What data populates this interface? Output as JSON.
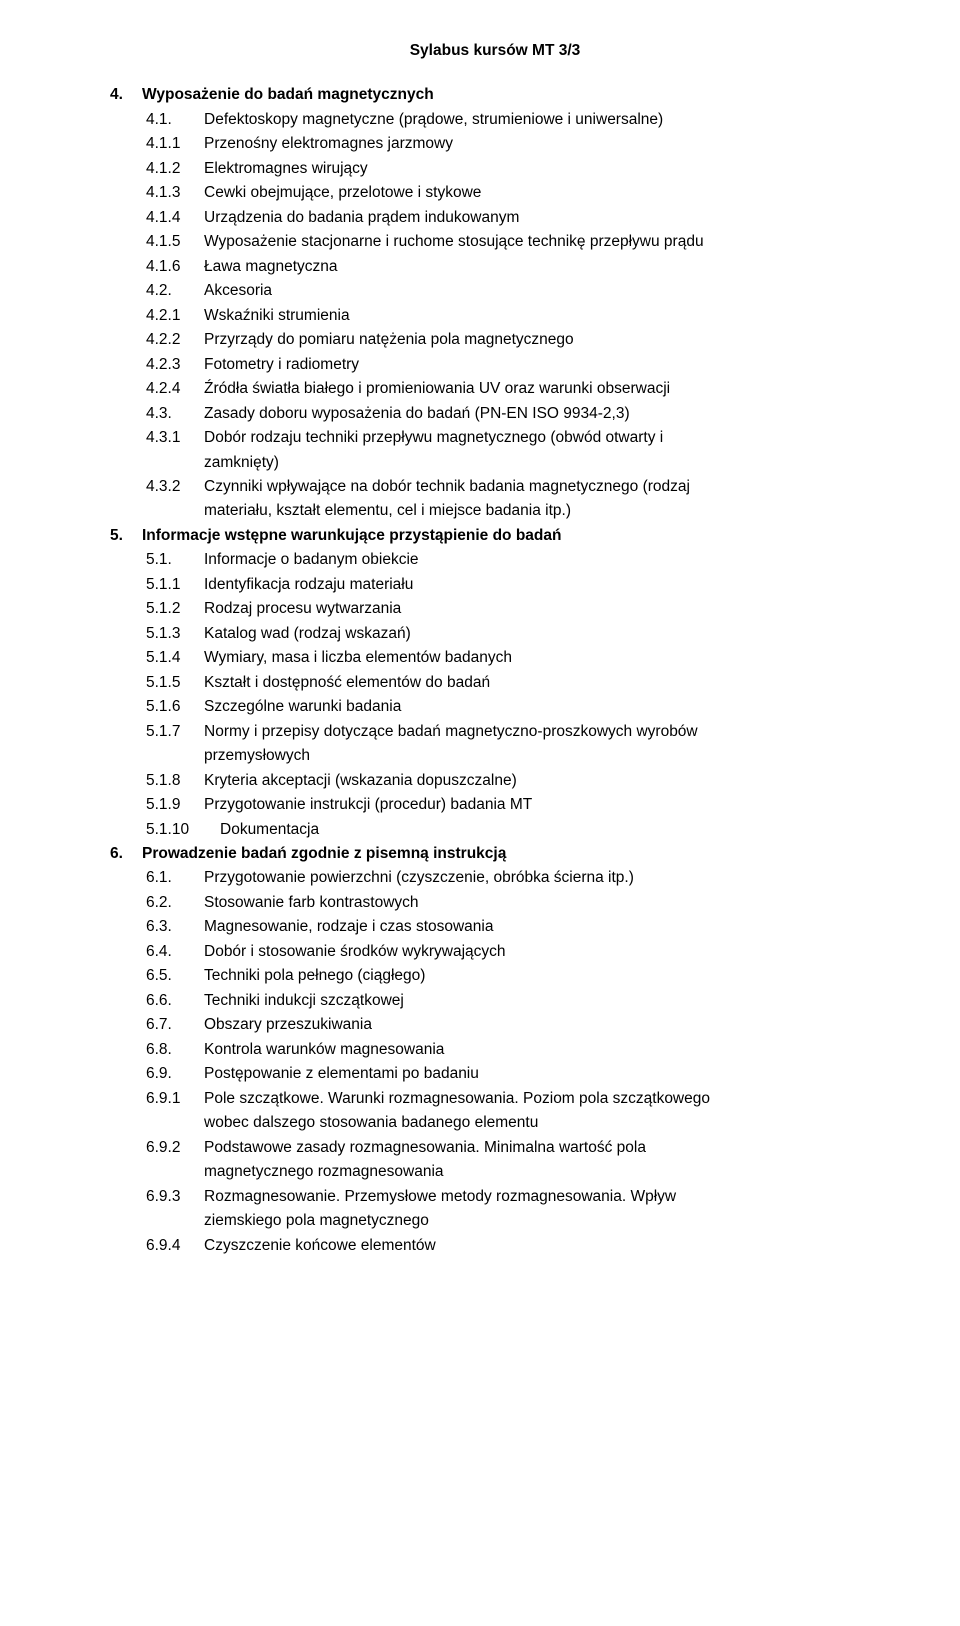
{
  "header": "Sylabus kursów MT 3/3",
  "items": [
    {
      "t": "l0",
      "n": "4.",
      "txt": "Wyposażenie do badań magnetycznych"
    },
    {
      "t": "l1",
      "n": "4.1.",
      "txt": "Defektoskopy magnetyczne (prądowe, strumieniowe i uniwersalne)"
    },
    {
      "t": "l2",
      "n": "4.1.1",
      "txt": "Przenośny elektromagnes jarzmowy"
    },
    {
      "t": "l2",
      "n": "4.1.2",
      "txt": "Elektromagnes wirujący"
    },
    {
      "t": "l2",
      "n": "4.1.3",
      "txt": "Cewki obejmujące, przelotowe i stykowe"
    },
    {
      "t": "l2",
      "n": "4.1.4",
      "txt": "Urządzenia do badania prądem indukowanym"
    },
    {
      "t": "l2",
      "n": "4.1.5",
      "txt": "Wyposażenie stacjonarne i ruchome stosujące technikę przepływu prądu"
    },
    {
      "t": "l2",
      "n": "4.1.6",
      "txt": "Ława magnetyczna"
    },
    {
      "t": "l1",
      "n": "4.2.",
      "txt": "Akcesoria"
    },
    {
      "t": "l2",
      "n": "4.2.1",
      "txt": "Wskaźniki strumienia"
    },
    {
      "t": "l2",
      "n": "4.2.2",
      "txt": "Przyrządy do pomiaru natężenia pola magnetycznego"
    },
    {
      "t": "l2",
      "n": "4.2.3",
      "txt": "Fotometry i radiometry"
    },
    {
      "t": "l2",
      "n": "4.2.4",
      "txt": "Źródła światła białego i promieniowania UV oraz warunki obserwacji"
    },
    {
      "t": "l1",
      "n": "4.3.",
      "txt": "Zasady doboru wyposażenia do badań (PN-EN ISO 9934-2,3)"
    },
    {
      "t": "l2",
      "n": "4.3.1",
      "txt": "Dobór rodzaju techniki przepływu magnetycznego (obwód otwarty i"
    },
    {
      "t": "l2cont",
      "txt": "zamknięty)"
    },
    {
      "t": "l2",
      "n": "4.3.2",
      "txt": "Czynniki wpływające na dobór technik badania magnetycznego (rodzaj"
    },
    {
      "t": "l2cont",
      "txt": "materiału, kształt elementu, cel i miejsce badania itp.)"
    },
    {
      "t": "l0",
      "n": "5.",
      "txt": "Informacje wstępne warunkujące przystąpienie do badań"
    },
    {
      "t": "l1",
      "n": "5.1.",
      "txt": "Informacje o badanym obiekcie"
    },
    {
      "t": "l2",
      "n": "5.1.1",
      "txt": "Identyfikacja rodzaju materiału"
    },
    {
      "t": "l2",
      "n": "5.1.2",
      "txt": "Rodzaj procesu wytwarzania"
    },
    {
      "t": "l2",
      "n": "5.1.3",
      "txt": "Katalog wad (rodzaj wskazań)"
    },
    {
      "t": "l2",
      "n": "5.1.4",
      "txt": "Wymiary, masa i liczba elementów badanych"
    },
    {
      "t": "l2",
      "n": "5.1.5",
      "txt": "Kształt i dostępność elementów do badań"
    },
    {
      "t": "l2",
      "n": "5.1.6",
      "txt": "Szczególne warunki badania"
    },
    {
      "t": "l2",
      "n": "5.1.7",
      "txt": "Normy i przepisy dotyczące badań magnetyczno-proszkowych wyrobów"
    },
    {
      "t": "l2cont",
      "txt": "przemysłowych"
    },
    {
      "t": "l2",
      "n": "5.1.8",
      "txt": "Kryteria akceptacji (wskazania dopuszczalne)"
    },
    {
      "t": "l2",
      "n": "5.1.9",
      "txt": "Przygotowanie instrukcji (procedur) badania MT"
    },
    {
      "t": "l2wide",
      "n": "5.1.10",
      "txt": "Dokumentacja"
    },
    {
      "t": "l0",
      "n": "6.",
      "txt": "Prowadzenie badań zgodnie z pisemną instrukcją"
    },
    {
      "t": "l1",
      "n": "6.1.",
      "txt": "Przygotowanie powierzchni (czyszczenie, obróbka ścierna itp.)"
    },
    {
      "t": "l1",
      "n": "6.2.",
      "txt": "Stosowanie farb kontrastowych"
    },
    {
      "t": "l1",
      "n": "6.3.",
      "txt": "Magnesowanie, rodzaje i czas stosowania"
    },
    {
      "t": "l1",
      "n": "6.4.",
      "txt": "Dobór i stosowanie środków wykrywających"
    },
    {
      "t": "l1",
      "n": "6.5.",
      "txt": "Techniki pola pełnego (ciągłego)"
    },
    {
      "t": "l1",
      "n": "6.6.",
      "txt": "Techniki indukcji szczątkowej"
    },
    {
      "t": "l1",
      "n": "6.7.",
      "txt": "Obszary przeszukiwania"
    },
    {
      "t": "l1",
      "n": "6.8.",
      "txt": "Kontrola warunków magnesowania"
    },
    {
      "t": "l1",
      "n": "6.9.",
      "txt": "Postępowanie z elementami po badaniu"
    },
    {
      "t": "l2",
      "n": "6.9.1",
      "txt": "Pole szczątkowe. Warunki rozmagnesowania. Poziom pola szczątkowego"
    },
    {
      "t": "l2cont",
      "txt": "wobec dalszego stosowania badanego elementu"
    },
    {
      "t": "l2",
      "n": "6.9.2",
      "txt": "Podstawowe zasady rozmagnesowania. Minimalna wartość pola"
    },
    {
      "t": "l2cont",
      "txt": "magnetycznego rozmagnesowania"
    },
    {
      "t": "l2",
      "n": "6.9.3",
      "txt": "Rozmagnesowanie. Przemysłowe metody rozmagnesowania. Wpływ"
    },
    {
      "t": "l2cont",
      "txt": "ziemskiego pola magnetycznego"
    },
    {
      "t": "l2",
      "n": "6.9.4",
      "txt": "Czyszczenie końcowe elementów"
    }
  ]
}
